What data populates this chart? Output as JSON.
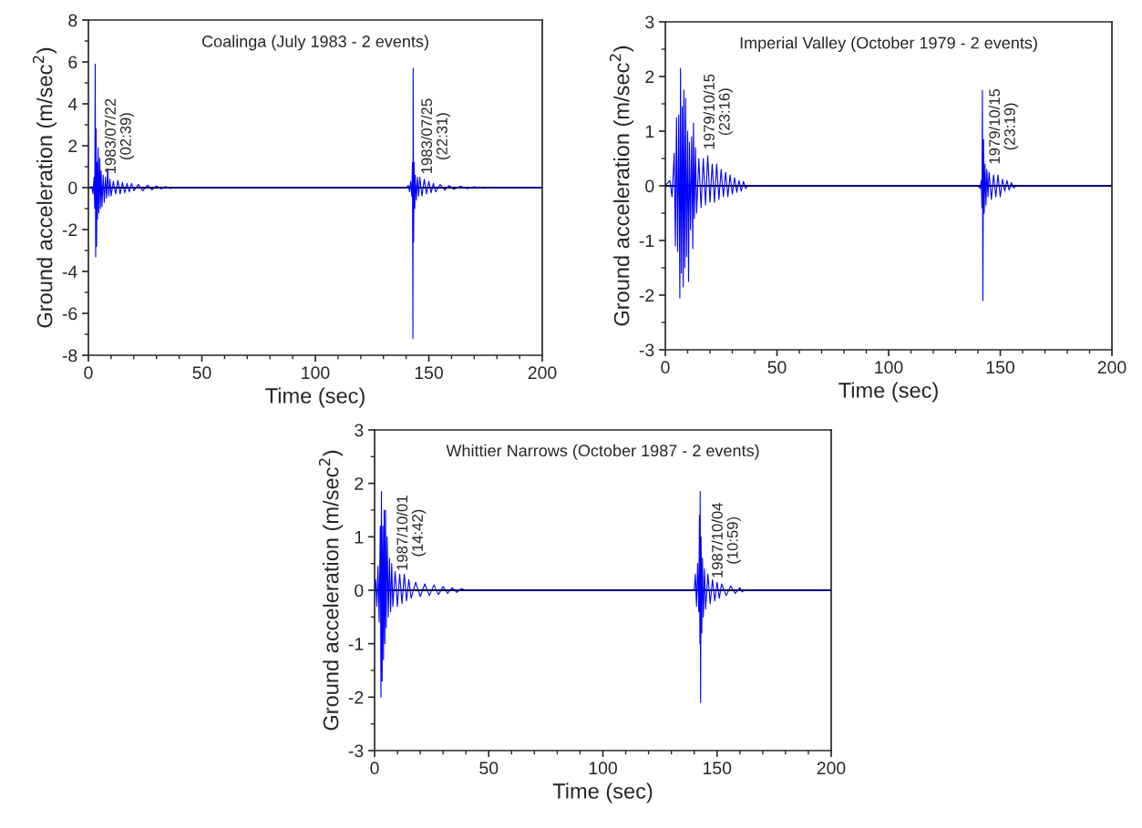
{
  "chart_data": [
    {
      "type": "line",
      "title": "Coalinga (July 1983 - 2 events)",
      "xlabel": "Time (sec)",
      "ylabel": "Ground acceleration (m/sec$^{2}$)",
      "xlim": [
        0,
        200
      ],
      "xticks": [
        0,
        50,
        100,
        150,
        200
      ],
      "ylim": [
        -8,
        8
      ],
      "yticks": [
        -8,
        -6,
        -4,
        -2,
        0,
        2,
        4,
        6,
        8
      ],
      "grid": false,
      "ref_lines": [
        {
          "axis": "y",
          "value": 0,
          "color": "#000000"
        }
      ],
      "annotations": [
        "1983/07/22\n(02:39)",
        "1983/07/25\n(22:31)"
      ],
      "series": [
        {
          "color": "#0000ff",
          "x": [
            0,
            1.5,
            2,
            2.5,
            2.8,
            3.0,
            3.2,
            3.4,
            3.6,
            3.8,
            4.0,
            4.3,
            4.6,
            5.0,
            5.3,
            5.6,
            6.0,
            6.5,
            7,
            7.5,
            8,
            8.5,
            9,
            9.5,
            10,
            11,
            12,
            13,
            14,
            15,
            16,
            17,
            18,
            19,
            20,
            22,
            24,
            26,
            28,
            30,
            32,
            34,
            36,
            38,
            140,
            141,
            141.5,
            142,
            142.5,
            142.8,
            143,
            143.1,
            143.3,
            143.5,
            143.8,
            144,
            144.5,
            145,
            145.5,
            146,
            147,
            148,
            149,
            150,
            151,
            152,
            153,
            155,
            157,
            159,
            161,
            164,
            167,
            170,
            174,
            178,
            200
          ],
          "values": [
            0,
            0.05,
            -0.3,
            0.5,
            -1.0,
            5.9,
            -3.3,
            2.8,
            -2.8,
            1.2,
            -1.5,
            1.9,
            -1.2,
            1.4,
            -1.0,
            0.8,
            -0.9,
            0.6,
            -0.7,
            0.5,
            -0.5,
            0.9,
            -0.4,
            0.4,
            -0.4,
            0.3,
            -0.3,
            0.35,
            -0.3,
            0.25,
            -0.25,
            0.2,
            -0.2,
            0.2,
            -0.15,
            0.15,
            -0.15,
            0.12,
            -0.1,
            0.08,
            -0.06,
            0.05,
            -0.04,
            0,
            0,
            0.1,
            -0.2,
            0.3,
            -0.4,
            1.2,
            -7.2,
            5.7,
            -2.6,
            1.2,
            -1.0,
            0.6,
            -0.6,
            0.5,
            -0.4,
            0.5,
            -0.4,
            0.4,
            -0.3,
            0.3,
            -0.25,
            0.2,
            -0.2,
            0.15,
            -0.12,
            0.1,
            -0.08,
            0.06,
            -0.05,
            0.04,
            -0.03,
            0,
            0
          ]
        }
      ]
    },
    {
      "type": "line",
      "title": "Imperial Valley (October 1979 - 2 events)",
      "xlabel": "Time (sec)",
      "ylabel": "Ground acceleration (m/sec$^{2}$)",
      "xlim": [
        0,
        200
      ],
      "xticks": [
        0,
        50,
        100,
        150,
        200
      ],
      "ylim": [
        -3,
        3
      ],
      "yticks": [
        -3,
        -2,
        -1,
        0,
        1,
        2,
        3
      ],
      "grid": false,
      "ref_lines": [
        {
          "axis": "y",
          "value": 0,
          "color": "#000000"
        }
      ],
      "annotations": [
        "1979/10/15\n(23:16)",
        "1979/10/15\n(23:19)"
      ],
      "series": [
        {
          "color": "#0000ff",
          "x": [
            0,
            2,
            3,
            4,
            4.5,
            5,
            5.5,
            6,
            6.5,
            6.8,
            7.2,
            7.6,
            8,
            8.3,
            8.7,
            9.1,
            9.5,
            10,
            10.4,
            10.8,
            11.3,
            11.8,
            12.3,
            12.6,
            13,
            13.5,
            14,
            15,
            16,
            17,
            18,
            19,
            20,
            21,
            22,
            23,
            24,
            25,
            26,
            27,
            28,
            29,
            30,
            31,
            32,
            33,
            34,
            35,
            36,
            37,
            140,
            141,
            141.5,
            141.8,
            142,
            142.2,
            142.5,
            142.8,
            143.2,
            143.6,
            144,
            144.5,
            145,
            146,
            147,
            148,
            149,
            150,
            151,
            152,
            153,
            154,
            155,
            156,
            157,
            200
          ],
          "values": [
            0,
            0.1,
            -0.2,
            0.6,
            -1.1,
            1.25,
            -1.2,
            1.3,
            -2.05,
            2.15,
            -1.6,
            1.45,
            -1.85,
            1.75,
            -1.5,
            1.6,
            -1.3,
            1.0,
            -1.75,
            0.8,
            -0.8,
            0.9,
            -1.15,
            1.15,
            -0.6,
            0.7,
            -0.5,
            0.5,
            -0.4,
            0.5,
            -0.35,
            0.55,
            -0.3,
            0.4,
            -0.3,
            0.4,
            -0.25,
            0.3,
            -0.2,
            0.25,
            -0.2,
            0.2,
            -0.15,
            0.15,
            -0.12,
            0.1,
            -0.1,
            0.08,
            -0.05,
            0,
            0,
            -0.05,
            0.1,
            -0.4,
            1.75,
            -2.1,
            0.85,
            -0.5,
            0.4,
            -0.35,
            0.3,
            -0.2,
            0.25,
            -0.25,
            0.2,
            -0.2,
            0.2,
            -0.2,
            0.12,
            -0.1,
            0.1,
            -0.08,
            0.06,
            -0.04,
            0,
            0
          ]
        }
      ]
    },
    {
      "type": "line",
      "title": "Whittier Narrows (October 1987 - 2 events)",
      "xlabel": "Time (sec)",
      "ylabel": "Ground acceleration (m/sec$^{2}$)",
      "xlim": [
        0,
        200
      ],
      "xticks": [
        0,
        50,
        100,
        150,
        200
      ],
      "ylim": [
        -3,
        3
      ],
      "yticks": [
        -3,
        -2,
        -1,
        0,
        1,
        2,
        3
      ],
      "grid": false,
      "ref_lines": [
        {
          "axis": "y",
          "value": 0,
          "color": "#000000"
        }
      ],
      "annotations": [
        "1987/10/01\n(14:42)",
        "1987/10/04\n(10:59)"
      ],
      "series": [
        {
          "color": "#0000ff",
          "x": [
            0,
            0.5,
            1,
            1.5,
            2,
            2.5,
            2.8,
            3.0,
            3.3,
            3.6,
            3.9,
            4.2,
            4.5,
            4.8,
            5.1,
            5.5,
            6,
            6.5,
            7,
            7.5,
            8,
            9,
            10,
            11,
            12,
            13,
            14,
            15,
            16,
            18,
            20,
            22,
            24,
            26,
            28,
            30,
            32,
            34,
            36,
            38,
            40,
            140,
            140.5,
            141,
            141.5,
            142,
            142.3,
            142.5,
            142.6,
            142.8,
            143.0,
            143.3,
            143.6,
            144,
            144.5,
            145,
            146,
            147,
            148,
            149,
            150,
            151,
            152,
            154,
            156,
            158,
            160,
            161,
            162,
            200
          ],
          "values": [
            0,
            0.2,
            -0.3,
            0.45,
            -0.6,
            1.2,
            -2.0,
            1.85,
            -1.7,
            1.2,
            -1.3,
            1.5,
            -1.0,
            1.5,
            -0.7,
            1.0,
            -0.5,
            0.6,
            -0.4,
            0.5,
            -0.3,
            0.35,
            -0.3,
            0.3,
            -0.25,
            0.3,
            -0.2,
            0.2,
            -0.15,
            0.15,
            -0.12,
            0.12,
            -0.1,
            0.1,
            -0.08,
            0.07,
            -0.06,
            0.05,
            -0.04,
            0.03,
            0,
            0,
            0.3,
            -0.3,
            0.5,
            -0.4,
            1.4,
            -1.0,
            1.85,
            -2.1,
            1.0,
            -0.8,
            0.6,
            -0.5,
            0.4,
            -0.35,
            0.3,
            -0.25,
            0.2,
            -0.2,
            0.15,
            -0.15,
            0.12,
            -0.1,
            0.08,
            -0.06,
            0.05,
            -0.03,
            0,
            0
          ]
        }
      ]
    }
  ]
}
